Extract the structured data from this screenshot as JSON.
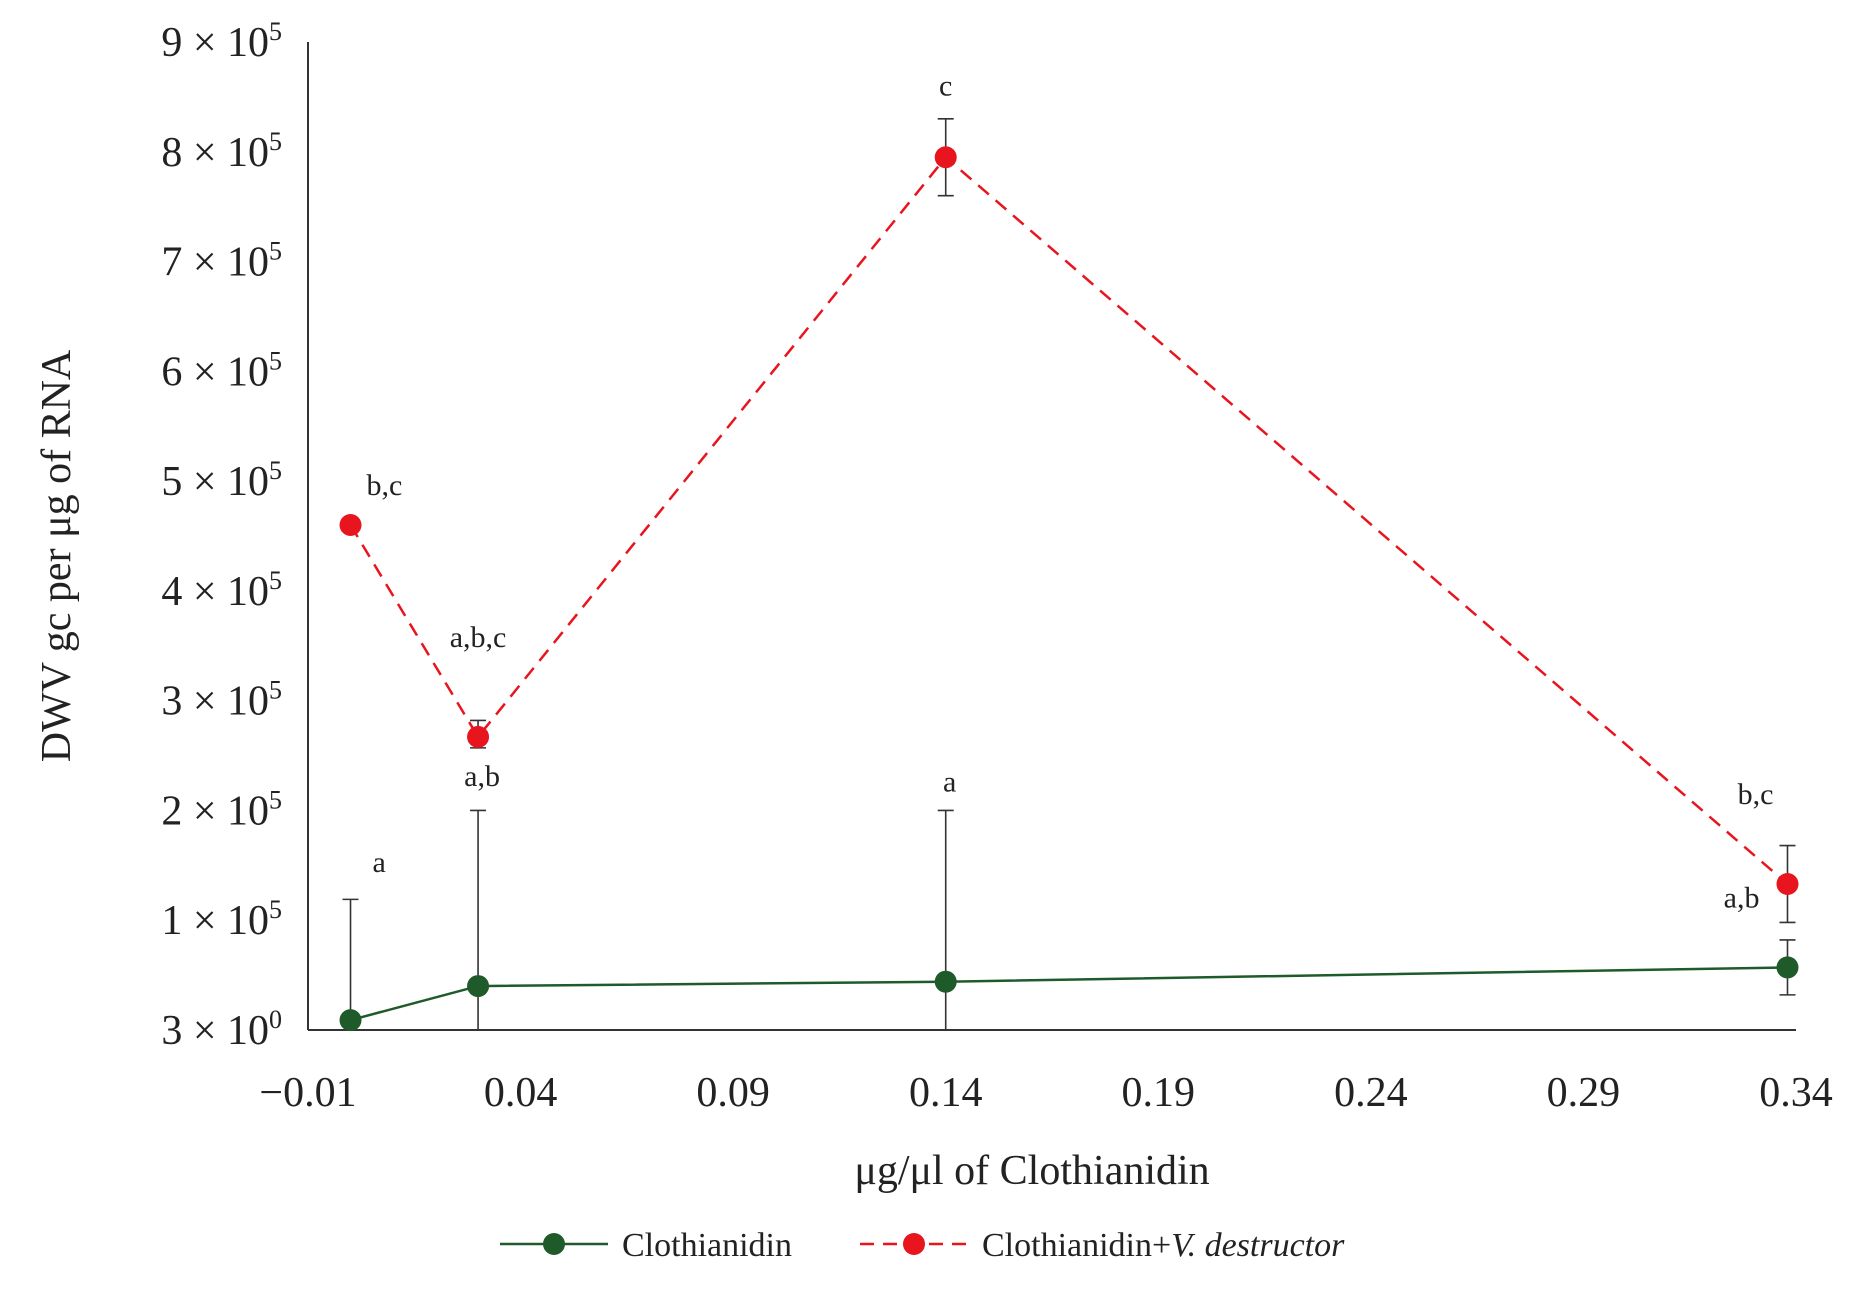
{
  "chart_data": {
    "type": "line",
    "xlabel": "μg/μl  of Clothianidin",
    "ylabel": "DWV gc per μg of RNA",
    "xlim": [
      -0.01,
      0.34
    ],
    "ylim": [
      3,
      900000
    ],
    "x_ticks": [
      -0.01,
      0.04,
      0.09,
      0.14,
      0.19,
      0.24,
      0.29,
      0.34
    ],
    "x_tick_labels": [
      "−0.01",
      "0.04",
      "0.09",
      "0.14",
      "0.19",
      "0.24",
      "0.29",
      "0.34"
    ],
    "y_ticks": [
      {
        "value": 3,
        "coef": "3",
        "exp": "0"
      },
      {
        "value": 100000,
        "coef": "1",
        "exp": "5"
      },
      {
        "value": 200000,
        "coef": "2",
        "exp": "5"
      },
      {
        "value": 300000,
        "coef": "3",
        "exp": "5"
      },
      {
        "value": 400000,
        "coef": "4",
        "exp": "5"
      },
      {
        "value": 500000,
        "coef": "5",
        "exp": "5"
      },
      {
        "value": 600000,
        "coef": "6",
        "exp": "5"
      },
      {
        "value": 700000,
        "coef": "7",
        "exp": "5"
      },
      {
        "value": 800000,
        "coef": "8",
        "exp": "5"
      },
      {
        "value": 900000,
        "coef": "9",
        "exp": "5"
      }
    ],
    "y_tick_times": "×",
    "y_tick_base": "10",
    "grid": false,
    "legend_position": "bottom",
    "series": [
      {
        "name": "Clothianidin",
        "color": "#1f5a2a",
        "line_style": "solid",
        "points": [
          {
            "x": 0.0,
            "y": 9000,
            "err_low": 9000,
            "err_high": 110000,
            "label": "a"
          },
          {
            "x": 0.03,
            "y": 40000,
            "err_low": 40000,
            "err_high": 160000,
            "label": "a,b"
          },
          {
            "x": 0.14,
            "y": 44000,
            "err_low": 44000,
            "err_high": 156000,
            "label": "a"
          },
          {
            "x": 0.338,
            "y": 57000,
            "err_low": 25000,
            "err_high": 25000,
            "label": "a,b"
          }
        ]
      },
      {
        "name_prefix": "Clothianidin+",
        "name_italic": "V. destructor",
        "color": "#e8141e",
        "line_style": "dashed",
        "points": [
          {
            "x": 0.0,
            "y": 460000,
            "err_low": 0,
            "err_high": 0,
            "label": "b,c"
          },
          {
            "x": 0.03,
            "y": 267000,
            "err_low": 10000,
            "err_high": 15000,
            "label": "a,b,c"
          },
          {
            "x": 0.14,
            "y": 795000,
            "err_low": 35000,
            "err_high": 35000,
            "label": "c"
          },
          {
            "x": 0.338,
            "y": 133000,
            "err_low": 35000,
            "err_high": 35000,
            "label": "b,c"
          }
        ]
      }
    ]
  }
}
